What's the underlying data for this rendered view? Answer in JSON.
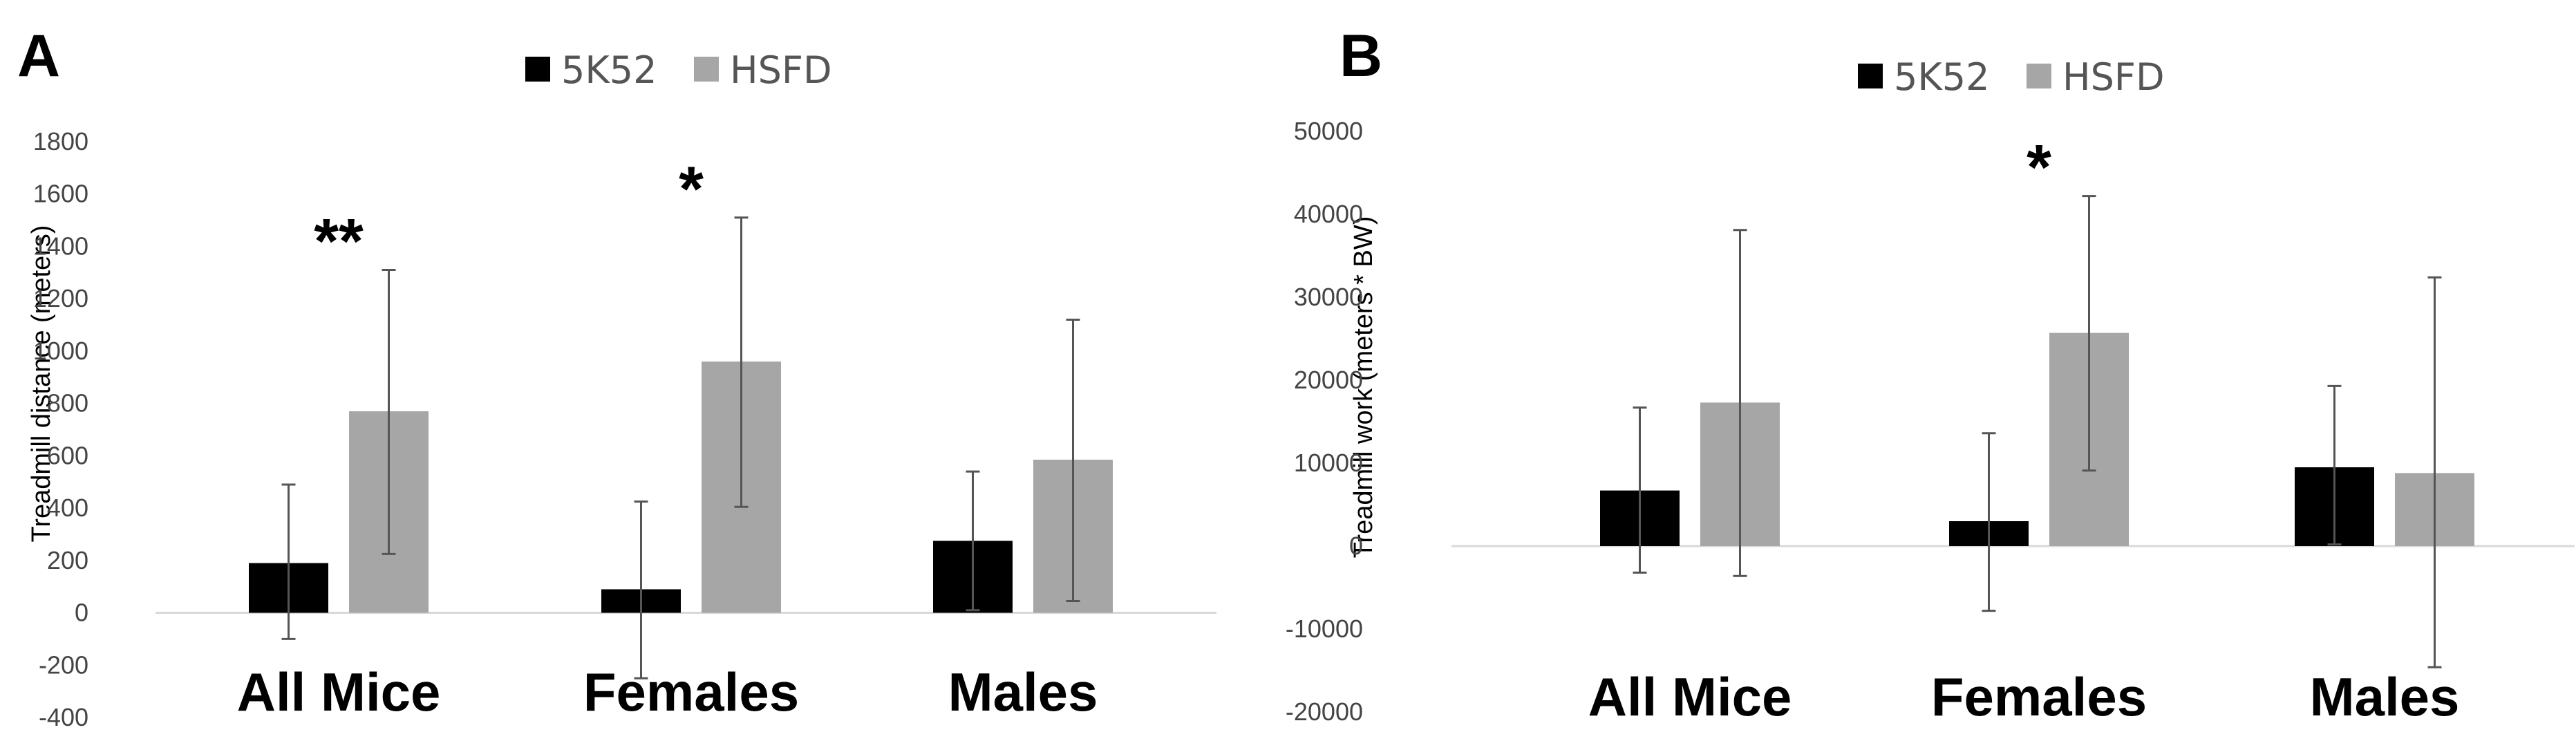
{
  "chart_data": [
    {
      "type": "bar",
      "panel": "A",
      "categories": [
        "All Mice",
        "Females",
        "Males"
      ],
      "series": [
        {
          "name": "5K52",
          "color": "#000000",
          "values": [
            190,
            90,
            275
          ],
          "error_high": [
            490,
            425,
            540
          ],
          "error_low": [
            -100,
            -250,
            10
          ]
        },
        {
          "name": "HSFD",
          "color": "#a6a6a6",
          "values": [
            770,
            960,
            585
          ],
          "error_high": [
            1310,
            1510,
            1120
          ],
          "error_low": [
            225,
            405,
            45
          ]
        }
      ],
      "ylabel": "Treadmill distance (meters)",
      "ylim": [
        -400,
        1800
      ],
      "yticks": [
        1800,
        1600,
        1400,
        1200,
        1000,
        800,
        600,
        400,
        200,
        0,
        -200,
        -400
      ],
      "significance": [
        {
          "category": "All Mice",
          "label": "**"
        },
        {
          "category": "Females",
          "label": "*"
        }
      ],
      "legend_position": "top-center",
      "grid": false
    },
    {
      "type": "bar",
      "panel": "B",
      "categories": [
        "All Mice",
        "Females",
        "Males"
      ],
      "series": [
        {
          "name": "5K52",
          "color": "#000000",
          "values": [
            6700,
            3000,
            9500
          ],
          "error_high": [
            16700,
            13600,
            19300
          ],
          "error_low": [
            -3200,
            -7800,
            200
          ]
        },
        {
          "name": "HSFD",
          "color": "#a6a6a6",
          "values": [
            17300,
            25700,
            8800
          ],
          "error_high": [
            38100,
            42200,
            32400
          ],
          "error_low": [
            -3600,
            9100,
            -14600
          ]
        }
      ],
      "ylabel": "Treadmill work (meters * BW)",
      "ylim": [
        -20000,
        50000
      ],
      "yticks": [
        50000,
        40000,
        30000,
        20000,
        10000,
        0,
        -10000,
        -20000
      ],
      "significance": [
        {
          "category": "Females",
          "label": "*"
        }
      ],
      "legend_position": "top-center",
      "grid": false
    }
  ]
}
